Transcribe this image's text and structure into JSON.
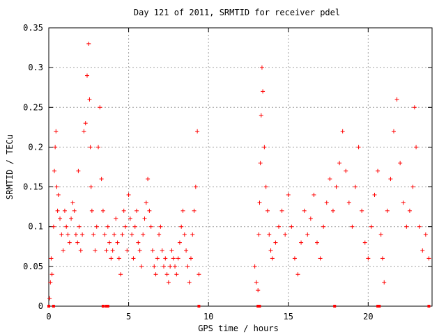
{
  "chart_data": {
    "type": "scatter",
    "title": "Day 121 of 2011, SRMTID for receiver pdel",
    "xlabel": "GPS time / hours",
    "ylabel": "SRMTID / TECu",
    "xlim": [
      0,
      24
    ],
    "ylim": [
      0,
      0.35
    ],
    "xticks": [
      0,
      5,
      10,
      15,
      20
    ],
    "xtick_labels": [
      "0",
      "5",
      "10",
      "15",
      "20"
    ],
    "yticks": [
      0,
      0.05,
      0.1,
      0.15,
      0.2,
      0.25,
      0.3,
      0.35
    ],
    "ytick_labels": [
      "0",
      "0.05",
      "0.1",
      "0.15",
      "0.2",
      "0.25",
      "0.3",
      "0.35"
    ],
    "grid": true,
    "legend": "none",
    "marker": "+",
    "color": "#ff0000",
    "series": [
      {
        "x": [
          0.05,
          0.1,
          0.15,
          0.2,
          0.3,
          0.35,
          0.4,
          0.45,
          0.5,
          0.55,
          0.6,
          0.7,
          0.8,
          0.9,
          1.0,
          1.1,
          1.2,
          1.3,
          1.4,
          1.5,
          1.6,
          1.7,
          1.8,
          1.85,
          1.9,
          2.0,
          2.1,
          2.2,
          2.3,
          2.4,
          2.5,
          2.55,
          2.6,
          2.65,
          2.7,
          2.8,
          2.9,
          3.0,
          3.1,
          3.2,
          3.3,
          3.4,
          3.5,
          3.6,
          3.7,
          3.8,
          3.9,
          4.0,
          4.1,
          4.2,
          4.3,
          4.4,
          4.5,
          4.6,
          4.7,
          4.8,
          4.9,
          5.0,
          5.1,
          5.2,
          5.3,
          5.4,
          5.5,
          5.6,
          5.7,
          5.8,
          5.9,
          6.0,
          6.1,
          6.2,
          6.3,
          6.4,
          6.5,
          6.6,
          6.7,
          6.8,
          6.9,
          7.0,
          7.1,
          7.2,
          7.3,
          7.4,
          7.5,
          7.6,
          7.7,
          7.8,
          7.9,
          8.0,
          8.1,
          8.2,
          8.3,
          8.4,
          8.5,
          8.6,
          8.7,
          8.8,
          8.9,
          9.0,
          9.1,
          9.2,
          9.3,
          9.4
        ],
        "y": [
          0.01,
          0.03,
          0.06,
          0.04,
          0.1,
          0.17,
          0.2,
          0.22,
          0.15,
          0.12,
          0.14,
          0.11,
          0.09,
          0.07,
          0.12,
          0.1,
          0.09,
          0.08,
          0.11,
          0.13,
          0.12,
          0.09,
          0.08,
          0.17,
          0.1,
          0.07,
          0.09,
          0.22,
          0.23,
          0.29,
          0.33,
          0.26,
          0.2,
          0.15,
          0.12,
          0.09,
          0.07,
          0.1,
          0.2,
          0.25,
          0.16,
          0.12,
          0.09,
          0.07,
          0.1,
          0.08,
          0.06,
          0.07,
          0.09,
          0.11,
          0.08,
          0.06,
          0.04,
          0.09,
          0.12,
          0.1,
          0.07,
          0.14,
          0.11,
          0.09,
          0.06,
          0.1,
          0.12,
          0.08,
          0.07,
          0.05,
          0.09,
          0.11,
          0.13,
          0.16,
          0.12,
          0.1,
          0.07,
          0.05,
          0.04,
          0.06,
          0.09,
          0.1,
          0.07,
          0.05,
          0.06,
          0.04,
          0.03,
          0.05,
          0.07,
          0.06,
          0.05,
          0.04,
          0.06,
          0.08,
          0.1,
          0.12,
          0.09,
          0.07,
          0.05,
          0.03,
          0.06,
          0.09,
          0.12,
          0.15,
          0.22,
          0.04
        ]
      },
      {
        "x": [
          12.9,
          13.0,
          13.1,
          13.15,
          13.2,
          13.25,
          13.3,
          13.35,
          13.4,
          13.5,
          13.6,
          13.7,
          13.8,
          13.9,
          14.0,
          14.2,
          14.4,
          14.6,
          14.8,
          15.0,
          15.2,
          15.4,
          15.6,
          15.8,
          16.0,
          16.2,
          16.4,
          16.6,
          16.8,
          17.0,
          17.2,
          17.4,
          17.6,
          17.8,
          18.0,
          18.2,
          18.4,
          18.6,
          18.8,
          19.0,
          19.2,
          19.4,
          19.6,
          19.8,
          20.0,
          20.2,
          20.4,
          20.6,
          20.8,
          20.9,
          21.0,
          21.2,
          21.4,
          21.6,
          21.8,
          22.0,
          22.2,
          22.4,
          22.6,
          22.8,
          22.9,
          23.0,
          23.2,
          23.4,
          23.6,
          23.8
        ],
        "y": [
          0.05,
          0.03,
          0.02,
          0.09,
          0.13,
          0.18,
          0.24,
          0.3,
          0.27,
          0.2,
          0.15,
          0.12,
          0.09,
          0.07,
          0.06,
          0.08,
          0.1,
          0.12,
          0.09,
          0.14,
          0.1,
          0.06,
          0.04,
          0.08,
          0.12,
          0.09,
          0.11,
          0.14,
          0.08,
          0.06,
          0.1,
          0.13,
          0.16,
          0.12,
          0.15,
          0.18,
          0.22,
          0.17,
          0.13,
          0.1,
          0.15,
          0.2,
          0.12,
          0.08,
          0.06,
          0.1,
          0.14,
          0.17,
          0.09,
          0.06,
          0.03,
          0.12,
          0.16,
          0.22,
          0.26,
          0.18,
          0.13,
          0.1,
          0.12,
          0.15,
          0.25,
          0.2,
          0.1,
          0.07,
          0.09,
          0.06
        ]
      }
    ],
    "baseline_markers_x": [
      0.0,
      0.3,
      3.4,
      3.6,
      3.7,
      9.4,
      13.1,
      13.2,
      17.9,
      20.6,
      20.7,
      23.8
    ]
  }
}
